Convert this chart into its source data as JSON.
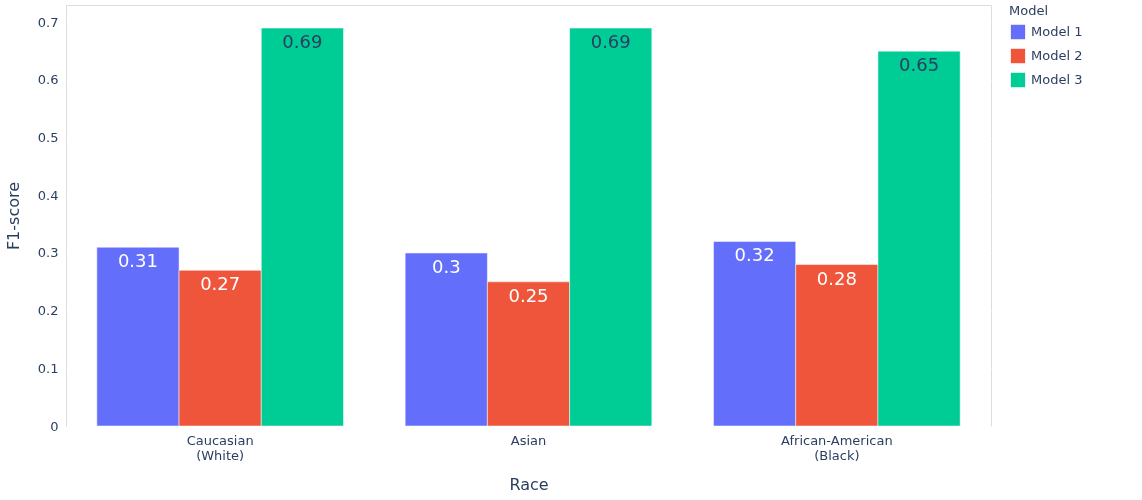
{
  "chart_data": {
    "type": "bar",
    "xlabel": "Race",
    "ylabel": "F1-score",
    "legend_title": "Model",
    "categories": [
      "Caucasian\n(White)",
      "Asian",
      "African-American\n(Black)"
    ],
    "series": [
      {
        "name": "Model 1",
        "color": "#636efa",
        "values": [
          0.31,
          0.3,
          0.32
        ]
      },
      {
        "name": "Model 2",
        "color": "#ef553b",
        "values": [
          0.27,
          0.25,
          0.28
        ]
      },
      {
        "name": "Model 3",
        "color": "#00cc96",
        "values": [
          0.69,
          0.69,
          0.65
        ]
      }
    ],
    "ylim": [
      0,
      0.73
    ],
    "yticks": [
      0,
      0.1,
      0.2,
      0.3,
      0.4,
      0.5,
      0.6,
      0.7
    ],
    "grid": "y",
    "legend": "top right",
    "data_labels": true
  }
}
